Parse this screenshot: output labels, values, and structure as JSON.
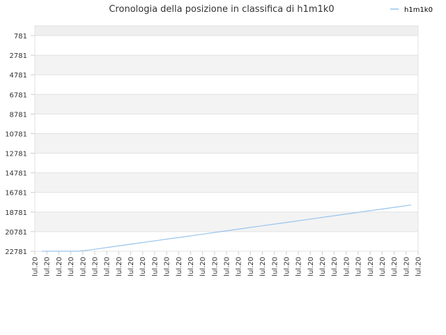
{
  "chart_data": {
    "type": "line",
    "title": "Cronologia della posizione in classifica di h1m1k0",
    "xlabel": "",
    "ylabel": "",
    "y_inverted": true,
    "ylim": [
      781,
      22781
    ],
    "y_ticks": [
      "781",
      "2781",
      "4781",
      "6781",
      "8781",
      "10781",
      "12781",
      "14781",
      "16781",
      "18781",
      "20781",
      "22781"
    ],
    "x_tick_label": "lul.20",
    "x_tick_count": 33,
    "grid": true,
    "legend_position": "top-right",
    "series": [
      {
        "name": "h1m1k0",
        "color": "#99c4ec",
        "values": [
          22781,
          22781,
          22781,
          22781,
          22650,
          22480,
          22310,
          22140,
          21970,
          21800,
          21630,
          21460,
          21290,
          21120,
          20950,
          20780,
          20610,
          20440,
          20270,
          20100,
          19930,
          19760,
          19590,
          19420,
          19250,
          19080,
          18910,
          18740,
          18570,
          18400,
          18230,
          18060
        ]
      }
    ]
  }
}
